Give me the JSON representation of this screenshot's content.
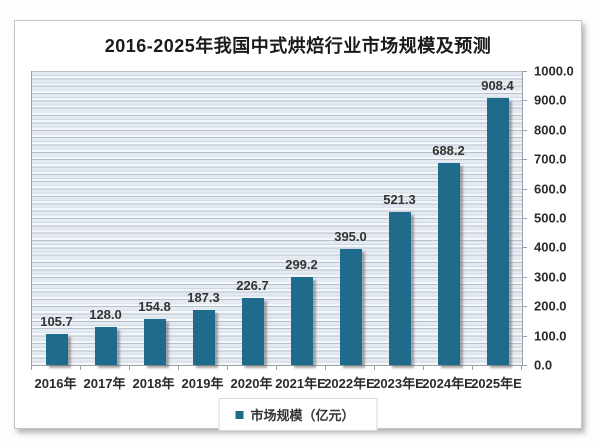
{
  "page": {
    "title": "2016-2025年我国中式烘焙行业市场规模及预测"
  },
  "chart_data": {
    "type": "bar",
    "title": "2016-2025年我国中式烘焙行业市场规模及预测",
    "categories": [
      "2016年",
      "2017年",
      "2018年",
      "2019年",
      "2020年",
      "2021年E",
      "2022年E",
      "2023年E",
      "2024年E",
      "2025年E"
    ],
    "series": [
      {
        "name": "市场规模（亿元）",
        "values": [
          105.7,
          128.0,
          154.8,
          187.3,
          226.7,
          299.2,
          395.0,
          521.3,
          688.2,
          908.4
        ]
      }
    ],
    "xlabel": "",
    "ylabel": "",
    "ylim": [
      0,
      1000
    ],
    "ytick_step": 100,
    "ytick_labels": [
      "0.0",
      "100.0",
      "200.0",
      "300.0",
      "400.0",
      "500.0",
      "600.0",
      "700.0",
      "800.0",
      "900.0",
      "1000.0"
    ],
    "yaxis_side": "right",
    "grid": "horizontal-pinstripes",
    "legend_position": "bottom",
    "data_labels": true
  },
  "legend": {
    "label": "市场规模（亿元）",
    "marker_color": "#1f6b8c"
  },
  "colors": {
    "bar": "#1f6b8c",
    "stripe_light": "#e3eaf2",
    "stripe_white": "#f4f7fa",
    "stripe_line": "#b7c1cc",
    "axis_line": "#98a2ab",
    "label_text": "#333333",
    "title_text": "#1a1a1a",
    "card_border": "#c6c6c6",
    "card_background": "#ffffff"
  }
}
